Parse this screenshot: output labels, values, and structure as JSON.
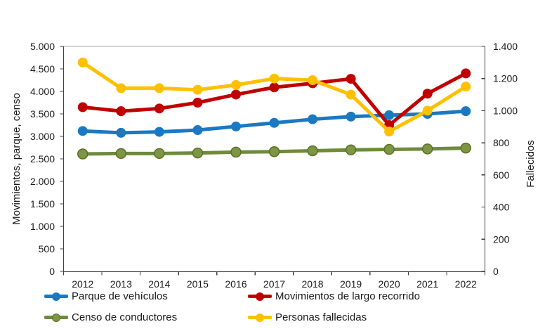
{
  "chart_data": {
    "type": "line",
    "title": "",
    "x_categories": [
      "2012",
      "2013",
      "2014",
      "2015",
      "2016",
      "2017",
      "2018",
      "2019",
      "2020",
      "2021",
      "2022"
    ],
    "series": [
      {
        "name": "Parque de vehículos",
        "axis": "left",
        "color": "#1B78C2",
        "values": [
          3120,
          3080,
          3100,
          3140,
          3220,
          3300,
          3380,
          3440,
          3470,
          3500,
          3560
        ]
      },
      {
        "name": "Movimientos de largo recorrido",
        "axis": "left",
        "color": "#C00000",
        "values": [
          3650,
          3560,
          3620,
          3750,
          3930,
          4090,
          4180,
          4280,
          3250,
          3950,
          4400
        ]
      },
      {
        "name": "Censo de conductores",
        "axis": "left",
        "color": "#6E8B3A",
        "marker_fill": "#7C9645",
        "marker_stroke": "#5C7026",
        "values": [
          2610,
          2620,
          2620,
          2630,
          2650,
          2660,
          2680,
          2700,
          2710,
          2720,
          2740
        ]
      },
      {
        "name": "Personas fallecidas",
        "axis": "right",
        "color": "#FFC000",
        "values": [
          1300,
          1140,
          1140,
          1130,
          1160,
          1200,
          1190,
          1100,
          870,
          1000,
          1150
        ]
      }
    ],
    "left_axis": {
      "title": "Movimientos, parque, censo",
      "min": 0,
      "max": 5000,
      "step": 500,
      "tick_labels": [
        "0",
        "500",
        "1.000",
        "1.500",
        "2.000",
        "2.500",
        "3.000",
        "3.500",
        "4.000",
        "4.500",
        "5.000"
      ]
    },
    "right_axis": {
      "title": "Fallecidos",
      "min": 0,
      "max": 1400,
      "step": 200,
      "tick_labels": [
        "0",
        "200",
        "400",
        "600",
        "800",
        "1.000",
        "1.200",
        "1.400"
      ]
    },
    "grid": false,
    "legend_position": "bottom",
    "style": {
      "axis_color": "#404040",
      "plot_top_border_color": "#A6A6A6",
      "text_color": "#1a1a1a",
      "background": "#FFFFFF"
    }
  }
}
